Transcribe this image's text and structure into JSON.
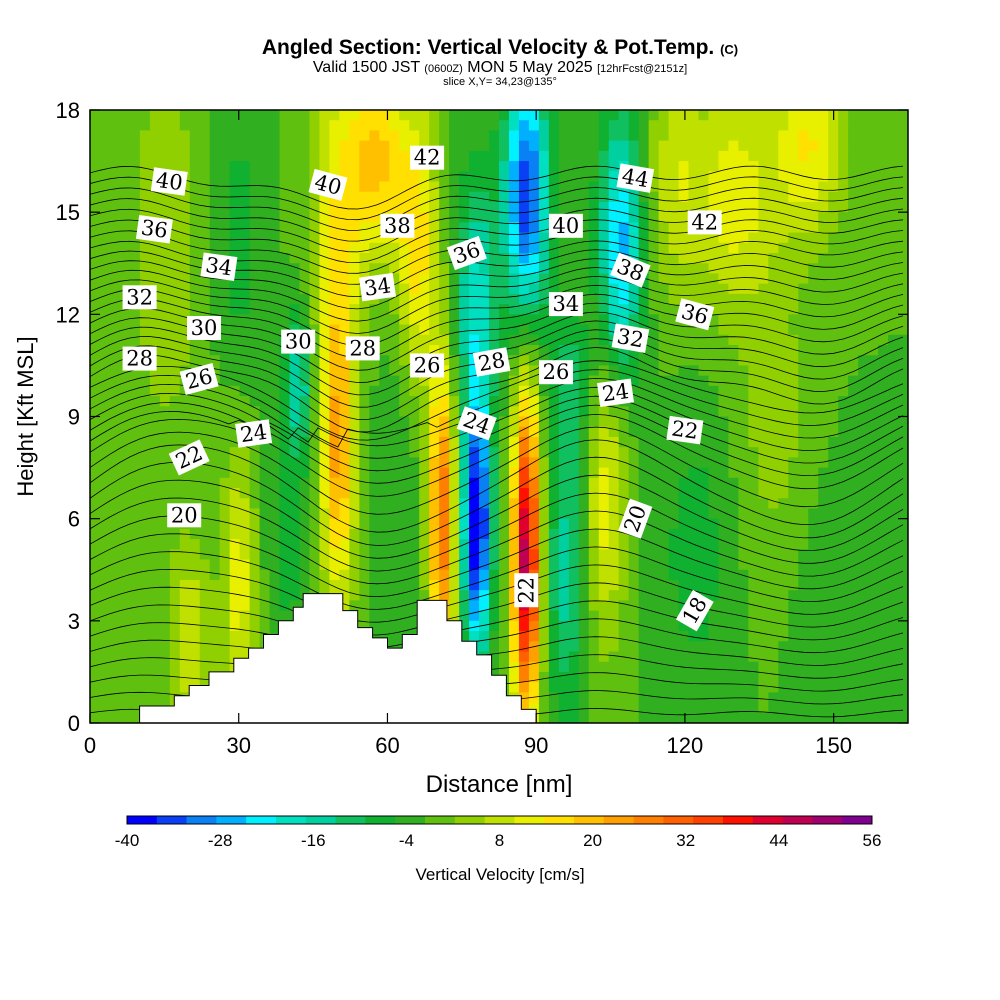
{
  "title": {
    "main": "Angled Section: Vertical Velocity & Pot.Temp.",
    "tag": "(C)",
    "valid_prefix": "Valid 1500 JST",
    "valid_utc": "(0600Z)",
    "valid_date": "MON 5 May 2025",
    "forecast": "[12hrFcst@2151z]",
    "slice": "slice X,Y= 34,23@135°"
  },
  "chart_data": {
    "type": "heatmap",
    "xlabel": "Distance [nm]",
    "ylabel": "Height [Kft MSL]",
    "xlim": [
      0,
      165
    ],
    "ylim": [
      0,
      18
    ],
    "x_ticks": [
      0,
      30,
      60,
      90,
      120,
      150
    ],
    "y_ticks": [
      0,
      3,
      6,
      9,
      12,
      15,
      18
    ],
    "colorbar": {
      "label": "Vertical Velocity [cm/s]",
      "tick_labels": [
        -40,
        -28,
        -16,
        -4,
        8,
        20,
        32,
        44,
        56
      ],
      "levels": [
        -40,
        -36,
        -32,
        -28,
        -24,
        -20,
        -16,
        -12,
        -8,
        -4,
        0,
        4,
        8,
        12,
        16,
        20,
        24,
        28,
        32,
        36,
        40,
        44,
        48,
        52,
        56
      ],
      "colors": [
        "#0000ff",
        "#0a40f5",
        "#0a80f5",
        "#00b0ff",
        "#00f0ff",
        "#00e0c0",
        "#00d0a0",
        "#10c060",
        "#10b030",
        "#30b020",
        "#60c010",
        "#90d000",
        "#c0e000",
        "#e8f000",
        "#ffe000",
        "#ffc000",
        "#ffa000",
        "#ff8000",
        "#ff6000",
        "#ff4000",
        "#ff1000",
        "#e00030",
        "#c00050",
        "#a00070",
        "#800090"
      ]
    },
    "terrain_profile": [
      [
        10,
        0.5
      ],
      [
        17,
        0.5
      ],
      [
        17,
        0.8
      ],
      [
        20,
        0.8
      ],
      [
        20,
        1.1
      ],
      [
        24,
        1.1
      ],
      [
        24,
        1.5
      ],
      [
        29,
        1.5
      ],
      [
        29,
        1.9
      ],
      [
        32,
        1.9
      ],
      [
        32,
        2.2
      ],
      [
        35,
        2.2
      ],
      [
        35,
        2.6
      ],
      [
        38,
        2.6
      ],
      [
        38,
        3
      ],
      [
        41,
        3
      ],
      [
        41,
        3.4
      ],
      [
        43,
        3.4
      ],
      [
        43,
        3.8
      ],
      [
        51,
        3.8
      ],
      [
        51,
        3.3
      ],
      [
        54,
        3.3
      ],
      [
        54,
        2.8
      ],
      [
        57,
        2.8
      ],
      [
        57,
        2.5
      ],
      [
        60,
        2.5
      ],
      [
        60,
        2.2
      ],
      [
        63,
        2.2
      ],
      [
        63,
        2.6
      ],
      [
        66,
        2.6
      ],
      [
        66,
        3.6
      ],
      [
        72,
        3.6
      ],
      [
        72,
        3
      ],
      [
        75,
        3
      ],
      [
        75,
        2.4
      ],
      [
        78,
        2.4
      ],
      [
        78,
        2
      ],
      [
        81,
        2
      ],
      [
        81,
        1.4
      ],
      [
        84,
        1.4
      ],
      [
        84,
        0.8
      ],
      [
        87,
        0.8
      ],
      [
        87,
        0.4
      ],
      [
        90,
        0.4
      ],
      [
        90,
        0
      ]
    ],
    "theta_labels": [
      {
        "value": "40",
        "x": 16,
        "y": 15.9,
        "angle": 8
      },
      {
        "value": "36",
        "x": 13,
        "y": 14.5,
        "angle": 8
      },
      {
        "value": "34",
        "x": 26,
        "y": 13.4,
        "angle": 8
      },
      {
        "value": "32",
        "x": 10,
        "y": 12.5,
        "angle": 0
      },
      {
        "value": "30",
        "x": 23,
        "y": 11.6,
        "angle": 0
      },
      {
        "value": "28",
        "x": 10,
        "y": 10.7,
        "angle": 0
      },
      {
        "value": "26",
        "x": 22,
        "y": 10.1,
        "angle": -15
      },
      {
        "value": "22",
        "x": 20,
        "y": 7.8,
        "angle": -25
      },
      {
        "value": "24",
        "x": 33,
        "y": 8.5,
        "angle": -8
      },
      {
        "value": "20",
        "x": 19,
        "y": 6.1,
        "angle": 0
      },
      {
        "value": "40",
        "x": 48,
        "y": 15.8,
        "angle": 15
      },
      {
        "value": "38",
        "x": 62,
        "y": 14.6,
        "angle": 0
      },
      {
        "value": "42",
        "x": 68,
        "y": 16.6,
        "angle": 0
      },
      {
        "value": "34",
        "x": 58,
        "y": 12.8,
        "angle": -8
      },
      {
        "value": "30",
        "x": 42,
        "y": 11.2,
        "angle": 0
      },
      {
        "value": "28",
        "x": 55,
        "y": 11.0,
        "angle": 0
      },
      {
        "value": "26",
        "x": 68,
        "y": 10.5,
        "angle": 0
      },
      {
        "value": "36",
        "x": 76,
        "y": 13.8,
        "angle": -20
      },
      {
        "value": "28",
        "x": 81,
        "y": 10.6,
        "angle": -10
      },
      {
        "value": "24",
        "x": 78,
        "y": 8.8,
        "angle": 20
      },
      {
        "value": "40",
        "x": 96,
        "y": 14.6,
        "angle": 0
      },
      {
        "value": "34",
        "x": 96,
        "y": 12.3,
        "angle": 0
      },
      {
        "value": "26",
        "x": 94,
        "y": 10.3,
        "angle": 0
      },
      {
        "value": "44",
        "x": 110,
        "y": 16.0,
        "angle": 10
      },
      {
        "value": "38",
        "x": 109,
        "y": 13.3,
        "angle": 22
      },
      {
        "value": "42",
        "x": 124,
        "y": 14.7,
        "angle": 0
      },
      {
        "value": "32",
        "x": 109,
        "y": 11.3,
        "angle": 10
      },
      {
        "value": "36",
        "x": 122,
        "y": 12.0,
        "angle": 15
      },
      {
        "value": "24",
        "x": 106,
        "y": 9.7,
        "angle": -8
      },
      {
        "value": "22",
        "x": 120,
        "y": 8.6,
        "angle": 8
      },
      {
        "value": "20",
        "x": 110,
        "y": 6.0,
        "angle": -70
      },
      {
        "value": "22",
        "x": 88,
        "y": 3.9,
        "angle": -90
      },
      {
        "value": "18",
        "x": 122,
        "y": 3.3,
        "angle": -60
      }
    ]
  }
}
